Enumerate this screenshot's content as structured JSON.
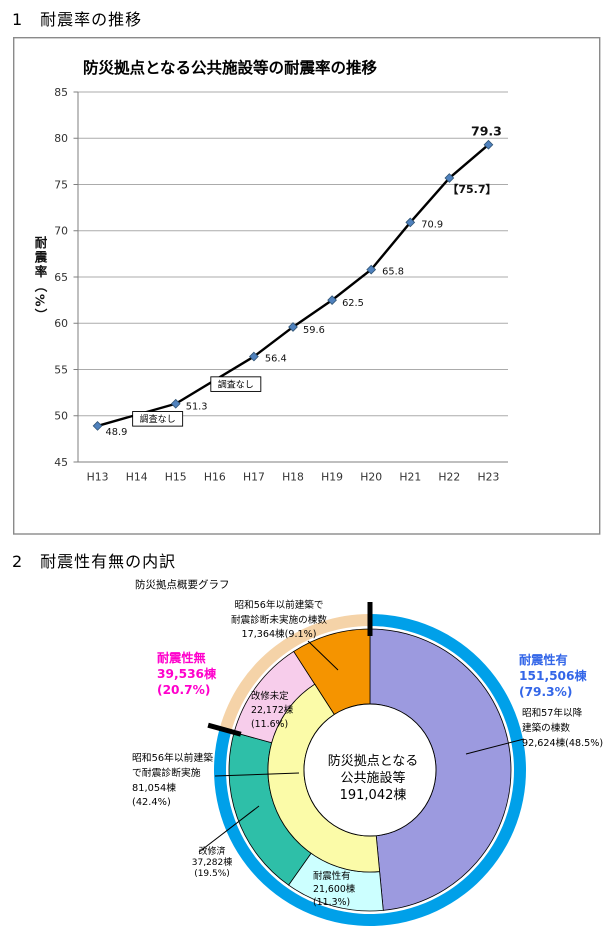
{
  "page": {
    "heading1": "1　耐震率の推移",
    "heading2": "2　耐震性有無の内訳"
  },
  "chart_data": [
    {
      "type": "line",
      "title": "防災拠点となる公共施設等の耐震率の推移",
      "ylabel": "耐震率（%）",
      "categories": [
        "H13",
        "H14",
        "H15",
        "H16",
        "H17",
        "H18",
        "H19",
        "H20",
        "H21",
        "H22",
        "H23"
      ],
      "values": [
        48.9,
        null,
        51.3,
        null,
        56.4,
        59.6,
        62.5,
        65.8,
        70.9,
        75.7,
        79.3
      ],
      "point_labels": [
        "48.9",
        "",
        "51.3",
        "",
        "56.4",
        "59.6",
        "62.5",
        "65.8",
        "70.9",
        "【75.7】",
        "79.3"
      ],
      "ylim": [
        45,
        85
      ],
      "ytick_step": 5,
      "grid": true,
      "legend": "none",
      "annotations": [
        {
          "text": "調査なし",
          "category_index": 1
        },
        {
          "text": "調査なし",
          "category_index": 3
        }
      ],
      "colors": {
        "line": "#000000",
        "marker": "#4F81BD",
        "grid": "#ABABAB",
        "axis": "#7F7F7F"
      }
    },
    {
      "type": "donut",
      "subtitle": "防災拠点概要グラフ",
      "center_label_lines": [
        "防災拠点となる",
        "公共施設等",
        "191,042棟"
      ],
      "total_count": "191,042棟",
      "wedges": [
        {
          "name": "昭和57年以降建築の棟数",
          "count": "92,624棟",
          "pct": 48.5,
          "color": "#9C9ADF",
          "span": "full",
          "label_lines": [
            "昭和57年以降",
            "建築の棟数",
            "92,624棟(48.5%)"
          ]
        },
        {
          "name": "耐震性有",
          "count": "21,600棟",
          "pct": 11.3,
          "color": "#CCFFFF",
          "span": "outer",
          "label_lines": [
            "耐震性有",
            "21,600棟",
            "(11.3%)"
          ]
        },
        {
          "name": "改修済",
          "count": "37,282棟",
          "pct": 19.5,
          "color": "#2EBFA8",
          "span": "outer",
          "label_lines": [
            "改修済",
            "37,282棟",
            "(19.5%)"
          ]
        },
        {
          "name": "改修未定",
          "count": "22,172棟",
          "pct": 11.6,
          "color": "#F7CDEB",
          "span": "outer",
          "label_lines": [
            "改修未定",
            "22,172棟",
            "(11.6%)"
          ]
        },
        {
          "name": "昭和56年以前建築で耐震診断未実施の棟数",
          "count": "17,364棟",
          "pct": 9.1,
          "color": "#F59400",
          "span": "full",
          "label_lines": [
            "昭和56年以前建築で",
            "耐震診断未実施の棟数",
            "17,364棟(9.1%)"
          ]
        }
      ],
      "inner_ring": {
        "name": "昭和56年以前建築で耐震診断実施",
        "count": "81,054棟",
        "pct": 42.4,
        "color": "#FBFBA8",
        "label_lines": [
          "昭和56年以前建築",
          "で耐震診断実施",
          "81,054棟",
          "(42.4%)"
        ]
      },
      "outer_band": [
        {
          "name": "耐震性有",
          "count": "151,506棟",
          "pct": 79.3,
          "color": "#00A0E9",
          "text_color": "#3366E8",
          "label_lines": [
            "耐震性有",
            "151,506棟",
            "(79.3%)"
          ]
        },
        {
          "name": "耐震性無",
          "count": "39,536棟",
          "pct": 20.7,
          "color": "#F5D3A8",
          "text_color": "#FF00CC",
          "label_lines": [
            "耐震性無",
            "39,536棟",
            "(20.7%)"
          ]
        }
      ]
    }
  ]
}
